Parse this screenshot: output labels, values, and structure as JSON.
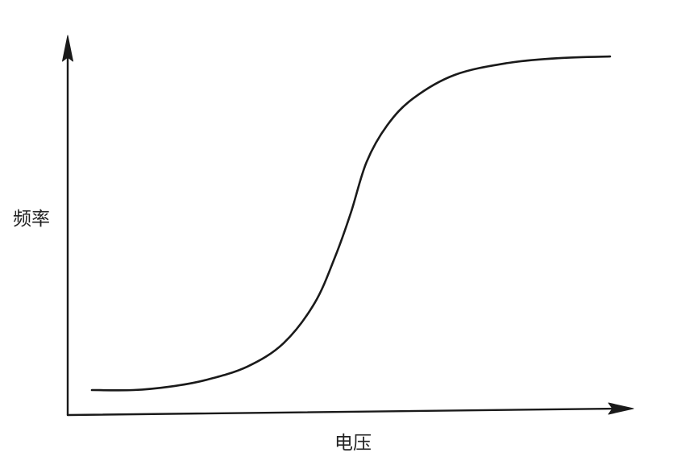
{
  "chart_data": {
    "type": "line",
    "title": "",
    "xlabel": "电压",
    "ylabel": "频率",
    "grid": false,
    "legend": "none",
    "ticks": false,
    "xlim": [
      0,
      1
    ],
    "ylim": [
      0,
      1
    ],
    "series": [
      {
        "values": [
          {
            "x": 0.0,
            "y": 0.0
          },
          {
            "x": 0.08,
            "y": 0.0
          },
          {
            "x": 0.15,
            "y": 0.01
          },
          {
            "x": 0.22,
            "y": 0.03
          },
          {
            "x": 0.3,
            "y": 0.07
          },
          {
            "x": 0.37,
            "y": 0.14
          },
          {
            "x": 0.43,
            "y": 0.26
          },
          {
            "x": 0.47,
            "y": 0.4
          },
          {
            "x": 0.5,
            "y": 0.53
          },
          {
            "x": 0.53,
            "y": 0.68
          },
          {
            "x": 0.57,
            "y": 0.79
          },
          {
            "x": 0.62,
            "y": 0.87
          },
          {
            "x": 0.7,
            "y": 0.94
          },
          {
            "x": 0.8,
            "y": 0.975
          },
          {
            "x": 0.9,
            "y": 0.99
          },
          {
            "x": 1.0,
            "y": 0.995
          }
        ]
      }
    ],
    "colors": {
      "axis": "#1a1a1a",
      "curve": "#1a1a1a",
      "label": "#222222",
      "background": "#ffffff"
    }
  }
}
